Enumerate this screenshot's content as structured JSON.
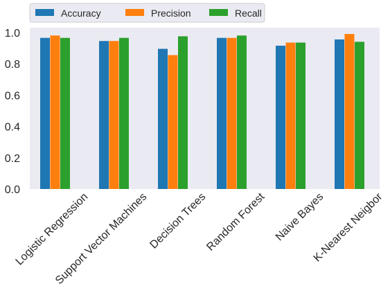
{
  "chart_data": {
    "type": "bar",
    "categories": [
      "Logistic Regression",
      "Support Vector Machines",
      "Decision Trees",
      "Random Forest",
      "Naive Bayes",
      "K-Nearest Neigbor"
    ],
    "series": [
      {
        "name": "Accuracy",
        "values": [
          0.965,
          0.945,
          0.895,
          0.965,
          0.915,
          0.955
        ],
        "color": "#1f77b4"
      },
      {
        "name": "Precision",
        "values": [
          0.98,
          0.945,
          0.855,
          0.965,
          0.935,
          0.99
        ],
        "color": "#ff7f0e"
      },
      {
        "name": "Recall",
        "values": [
          0.965,
          0.965,
          0.975,
          0.98,
          0.935,
          0.94
        ],
        "color": "#2ca02c"
      }
    ],
    "title": "",
    "xlabel": "",
    "ylabel": "",
    "ylim": [
      0,
      1.03
    ],
    "yticks": [
      "0.0",
      "0.2",
      "0.4",
      "0.6",
      "0.8",
      "1.0"
    ],
    "grid": false,
    "legend": "top-left, above plot, horizontal",
    "background": "#eaeaf2"
  }
}
